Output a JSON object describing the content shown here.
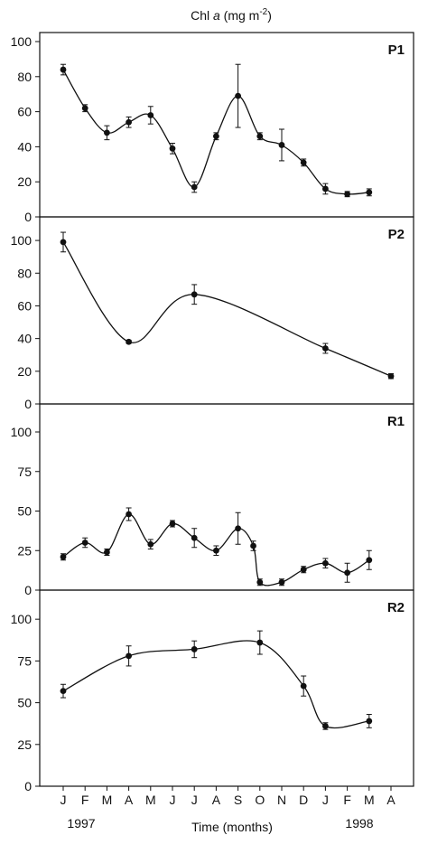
{
  "chart_data": {
    "type": "line",
    "title_prefix": "Chl ",
    "title_italic": "a",
    "title_unit": " (mg m",
    "title_exp": "-2",
    "title_close": ")",
    "xlabel": "Time (months)",
    "year_labels": [
      "1997",
      "1998"
    ],
    "x_tick_labels": [
      "J",
      "F",
      "M",
      "A",
      "M",
      "J",
      "J",
      "A",
      "S",
      "O",
      "N",
      "D",
      "J",
      "F",
      "M",
      "A"
    ],
    "panels": [
      {
        "label": "P1",
        "ylim": [
          0,
          100
        ],
        "yticks": [
          0,
          20,
          40,
          60,
          80,
          100
        ],
        "points": [
          {
            "x": 0,
            "y": 84,
            "err": 3
          },
          {
            "x": 1,
            "y": 62,
            "err": 2
          },
          {
            "x": 2,
            "y": 48,
            "err": 4
          },
          {
            "x": 3,
            "y": 54,
            "err": 3
          },
          {
            "x": 4,
            "y": 58,
            "err": 5
          },
          {
            "x": 5,
            "y": 39,
            "err": 3
          },
          {
            "x": 6,
            "y": 17,
            "err": 3
          },
          {
            "x": 7,
            "y": 46,
            "err": 2
          },
          {
            "x": 8,
            "y": 69,
            "err": 18
          },
          {
            "x": 9,
            "y": 46,
            "err": 2
          },
          {
            "x": 10,
            "y": 41,
            "err": 9
          },
          {
            "x": 11,
            "y": 31,
            "err": 2
          },
          {
            "x": 12,
            "y": 16,
            "err": 3
          },
          {
            "x": 13,
            "y": 13,
            "err": 1.5
          },
          {
            "x": 14,
            "y": 14,
            "err": 2
          }
        ]
      },
      {
        "label": "P2",
        "ylim": [
          0,
          110
        ],
        "yticks": [
          0,
          20,
          40,
          60,
          80,
          100
        ],
        "points": [
          {
            "x": 0,
            "y": 99,
            "err": 6
          },
          {
            "x": 3,
            "y": 38,
            "err": 1
          },
          {
            "x": 6,
            "y": 67,
            "err": 6
          },
          {
            "x": 12,
            "y": 34,
            "err": 3
          },
          {
            "x": 15,
            "y": 17,
            "err": 1.5
          }
        ]
      },
      {
        "label": "R1",
        "ylim": [
          0,
          112
        ],
        "yticks": [
          0,
          25,
          50,
          75,
          100
        ],
        "points": [
          {
            "x": 0,
            "y": 21,
            "err": 2
          },
          {
            "x": 1,
            "y": 30,
            "err": 3
          },
          {
            "x": 2,
            "y": 24,
            "err": 2
          },
          {
            "x": 3,
            "y": 48,
            "err": 4
          },
          {
            "x": 4,
            "y": 29,
            "err": 3
          },
          {
            "x": 5,
            "y": 42,
            "err": 2
          },
          {
            "x": 6,
            "y": 33,
            "err": 6
          },
          {
            "x": 7,
            "y": 25,
            "err": 3
          },
          {
            "x": 8,
            "y": 39,
            "err": 10
          },
          {
            "x": 8.7,
            "y": 28,
            "err": 3
          },
          {
            "x": 9,
            "y": 5,
            "err": 2
          },
          {
            "x": 10,
            "y": 5,
            "err": 2
          },
          {
            "x": 11,
            "y": 13,
            "err": 2
          },
          {
            "x": 12,
            "y": 17,
            "err": 3
          },
          {
            "x": 13,
            "y": 11,
            "err": 6
          },
          {
            "x": 14,
            "y": 19,
            "err": 6
          }
        ]
      },
      {
        "label": "R2",
        "ylim": [
          0,
          112
        ],
        "yticks": [
          0,
          25,
          50,
          75,
          100
        ],
        "points": [
          {
            "x": 0,
            "y": 57,
            "err": 4
          },
          {
            "x": 3,
            "y": 78,
            "err": 6
          },
          {
            "x": 6,
            "y": 82,
            "err": 5
          },
          {
            "x": 9,
            "y": 86,
            "err": 7
          },
          {
            "x": 11,
            "y": 60,
            "err": 6
          },
          {
            "x": 12,
            "y": 36,
            "err": 2
          },
          {
            "x": 14,
            "y": 39,
            "err": 4
          }
        ]
      }
    ],
    "grid": false,
    "legend": "none"
  }
}
